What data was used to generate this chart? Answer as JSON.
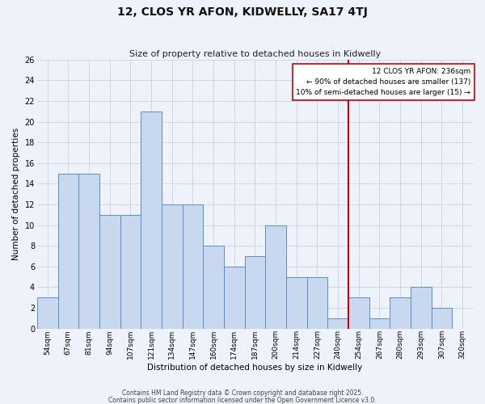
{
  "title": "12, CLOS YR AFON, KIDWELLY, SA17 4TJ",
  "subtitle": "Size of property relative to detached houses in Kidwelly",
  "xlabel": "Distribution of detached houses by size in Kidwelly",
  "ylabel": "Number of detached properties",
  "categories": [
    "54sqm",
    "67sqm",
    "81sqm",
    "94sqm",
    "107sqm",
    "121sqm",
    "134sqm",
    "147sqm",
    "160sqm",
    "174sqm",
    "187sqm",
    "200sqm",
    "214sqm",
    "227sqm",
    "240sqm",
    "254sqm",
    "267sqm",
    "280sqm",
    "293sqm",
    "307sqm",
    "320sqm"
  ],
  "values": [
    3,
    15,
    15,
    11,
    11,
    21,
    12,
    12,
    8,
    6,
    7,
    10,
    5,
    5,
    1,
    3,
    1,
    3,
    4,
    2,
    0
  ],
  "bar_color": "#c8d9ef",
  "bar_edge_color": "#5b8dc8",
  "background_color": "#eef2fb",
  "grid_color": "#c8ccd8",
  "vline_x": 14.5,
  "vline_color": "#cc0000",
  "ylim": [
    0,
    26
  ],
  "yticks": [
    0,
    2,
    4,
    6,
    8,
    10,
    12,
    14,
    16,
    18,
    20,
    22,
    24,
    26
  ],
  "annotation_title": "12 CLOS YR AFON: 236sqm",
  "annotation_line1": "← 90% of detached houses are smaller (137)",
  "annotation_line2": "10% of semi-detached houses are larger (15) →",
  "annotation_box_color": "#ffffff",
  "annotation_border_color": "#cc0000",
  "footer1": "Contains HM Land Registry data © Crown copyright and database right 2025.",
  "footer2": "Contains public sector information licensed under the Open Government Licence v3.0."
}
